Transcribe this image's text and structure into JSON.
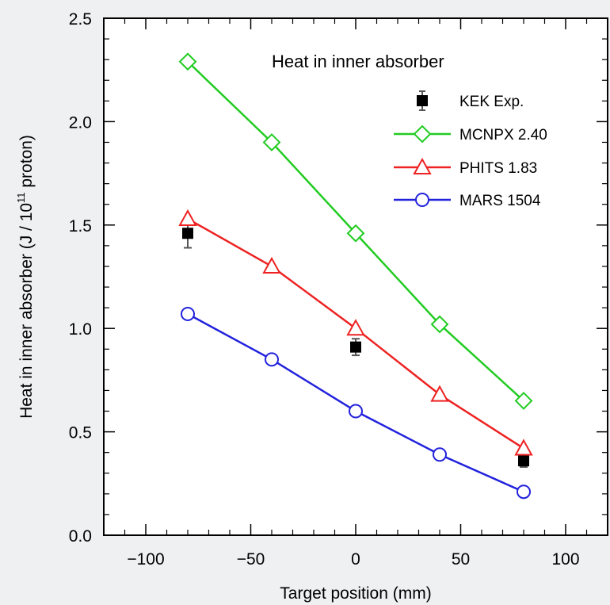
{
  "chart_data": {
    "type": "line",
    "title": "",
    "xlabel": "Target position (mm)",
    "ylabel_main": "Heat in inner absorber (J / 10",
    "ylabel_sup": "11",
    "ylabel_tail": " proton)",
    "xlim": [
      -120,
      120
    ],
    "ylim": [
      0.0,
      2.5
    ],
    "x_ticks": [
      -100,
      -50,
      0,
      50,
      100
    ],
    "x_tick_labels": [
      "−100",
      "−50",
      "0",
      "50",
      "100"
    ],
    "y_ticks": [
      0.0,
      0.5,
      1.0,
      1.5,
      2.0,
      2.5
    ],
    "y_tick_labels": [
      "0.0",
      "0.5",
      "1.0",
      "1.5",
      "2.0",
      "2.5"
    ],
    "grid": false,
    "legend": {
      "title": "Heat in inner absorber",
      "placement": "top-right"
    },
    "series": [
      {
        "name": "KEK Exp.",
        "marker": "filled-square",
        "line": false,
        "color": "#000000",
        "x": [
          -80,
          0,
          80
        ],
        "y": [
          1.46,
          0.91,
          0.36
        ],
        "err": [
          0.07,
          0.04,
          0.03
        ]
      },
      {
        "name": "MCNPX 2.40",
        "marker": "diamond",
        "line": true,
        "color": "#22cc22",
        "x": [
          -80,
          -40,
          0,
          40,
          80
        ],
        "y": [
          2.29,
          1.9,
          1.46,
          1.02,
          0.65
        ]
      },
      {
        "name": "PHITS 1.83",
        "marker": "triangle",
        "line": true,
        "color": "#ee2222",
        "x": [
          -80,
          -40,
          0,
          40,
          80
        ],
        "y": [
          1.53,
          1.3,
          1.0,
          0.68,
          0.42
        ]
      },
      {
        "name": "MARS 1504",
        "marker": "circle",
        "line": true,
        "color": "#2222dd",
        "x": [
          -80,
          -40,
          0,
          40,
          80
        ],
        "y": [
          1.07,
          0.85,
          0.6,
          0.39,
          0.21
        ]
      }
    ]
  }
}
